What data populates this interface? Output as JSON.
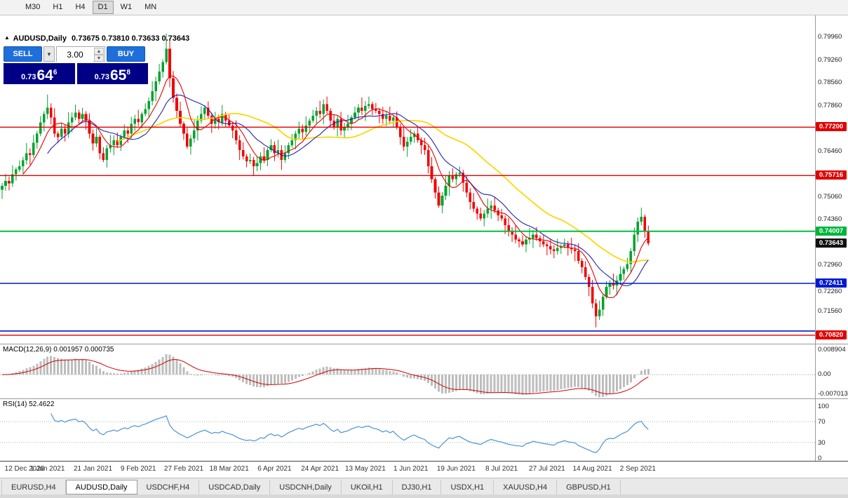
{
  "toolbar": {
    "timeframes": [
      {
        "label": "M30",
        "active": false
      },
      {
        "label": "H1",
        "active": false
      },
      {
        "label": "H4",
        "active": false
      },
      {
        "label": "D1",
        "active": true
      },
      {
        "label": "W1",
        "active": false
      },
      {
        "label": "MN",
        "active": false
      }
    ]
  },
  "chart_header": {
    "marker": "▲",
    "symbol": "AUDUSD,Daily",
    "ohlc": "0.73675 0.73810 0.73633 0.73643"
  },
  "trade_panel": {
    "sell_label": "SELL",
    "buy_label": "BUY",
    "volume": "3.00",
    "sell_price": {
      "prefix": "0.73",
      "big": "64",
      "sup": "6"
    },
    "buy_price": {
      "prefix": "0.73",
      "big": "65",
      "sup": "8"
    }
  },
  "indicators": {
    "macd": {
      "label": "MACD(12,26,9) 0.001957 0.000735",
      "params": {
        "fast": 12,
        "slow": 26,
        "signal": 9
      },
      "current_values": [
        "0.001957",
        "0.000735"
      ],
      "axis_labels": [
        {
          "text": "0.008904",
          "value": 0.008904
        },
        {
          "text": "0.00",
          "value": 0
        },
        {
          "text": "-0.007013",
          "value": -0.007013
        }
      ],
      "range": [
        -0.007013,
        0.008904
      ],
      "histogram_color": "#bdbdbd",
      "signal_color": "#d40000"
    },
    "rsi": {
      "label": "RSI(14) 52.4622",
      "period": 14,
      "current": 52.4622,
      "axis_labels": [
        {
          "text": "100",
          "value": 100
        },
        {
          "text": "70",
          "value": 70
        },
        {
          "text": "30",
          "value": 30
        },
        {
          "text": "0",
          "value": 0
        }
      ],
      "levels": [
        70,
        30
      ],
      "line_color": "#4c93d0"
    }
  },
  "price_axis": {
    "plain_labels": [
      {
        "text": "0.79960",
        "value": 0.7996
      },
      {
        "text": "0.79260",
        "value": 0.7926
      },
      {
        "text": "0.78560",
        "value": 0.7856
      },
      {
        "text": "0.77860",
        "value": 0.7786
      },
      {
        "text": "0.77160",
        "value": 0.7716
      },
      {
        "text": "0.76460",
        "value": 0.7646
      },
      {
        "text": "0.75760",
        "value": 0.7576
      },
      {
        "text": "0.75060",
        "value": 0.7506
      },
      {
        "text": "0.74360",
        "value": 0.7436
      },
      {
        "text": "0.73660",
        "value": 0.7366
      },
      {
        "text": "0.72960",
        "value": 0.7296
      },
      {
        "text": "0.72260",
        "value": 0.7226
      },
      {
        "text": "0.71560",
        "value": 0.7156
      },
      {
        "text": "0.70860",
        "value": 0.7086
      }
    ],
    "badges": [
      {
        "text": "0.77200",
        "price": 0.772,
        "color": "#e00000"
      },
      {
        "text": "0.75716",
        "price": 0.75716,
        "color": "#e00000"
      },
      {
        "text": "0.74007",
        "price": 0.74007,
        "color": "#00b43c"
      },
      {
        "text": "0.73643",
        "price": 0.73643,
        "color": "#101010"
      },
      {
        "text": "0.72411",
        "price": 0.72411,
        "color": "#0019d0"
      },
      {
        "text": "0.70820",
        "price": 0.7082,
        "color": "#e00000"
      }
    ]
  },
  "chart_data": {
    "type": "candlestick",
    "symbol": "AUDUSD",
    "timeframe": "Daily",
    "ohlc_display": {
      "open": "0.73675",
      "high": "0.73810",
      "low": "0.73633",
      "close": "0.73643"
    },
    "price_range_top": 0.80625,
    "price_range_bottom": 0.70561,
    "up_color": "#00a32e",
    "down_color": "#f20000",
    "first_open": 0.7528,
    "closes": [
      0.754,
      0.7555,
      0.7548,
      0.7575,
      0.759,
      0.76,
      0.7618,
      0.764,
      0.7635,
      0.7672,
      0.77,
      0.7735,
      0.776,
      0.778,
      0.775,
      0.77,
      0.769,
      0.7715,
      0.77,
      0.7735,
      0.775,
      0.7765,
      0.7745,
      0.776,
      0.774,
      0.77,
      0.767,
      0.769,
      0.764,
      0.762,
      0.7655,
      0.7665,
      0.768,
      0.7665,
      0.769,
      0.771,
      0.77,
      0.773,
      0.7745,
      0.7735,
      0.776,
      0.7775,
      0.78,
      0.783,
      0.786,
      0.789,
      0.792,
      0.796,
      0.787,
      0.781,
      0.777,
      0.773,
      0.77,
      0.766,
      0.7685,
      0.771,
      0.774,
      0.776,
      0.778,
      0.7755,
      0.773,
      0.7745,
      0.7735,
      0.776,
      0.774,
      0.7725,
      0.771,
      0.768,
      0.765,
      0.763,
      0.7615,
      0.762,
      0.76,
      0.761,
      0.763,
      0.762,
      0.765,
      0.7665,
      0.764,
      0.765,
      0.762,
      0.764,
      0.7665,
      0.768,
      0.77,
      0.7715,
      0.7705,
      0.7725,
      0.774,
      0.7755,
      0.777,
      0.776,
      0.779,
      0.777,
      0.774,
      0.772,
      0.7745,
      0.771,
      0.772,
      0.773,
      0.775,
      0.7765,
      0.778,
      0.777,
      0.7785,
      0.779,
      0.7775,
      0.777,
      0.776,
      0.7745,
      0.7755,
      0.774,
      0.775,
      0.772,
      0.769,
      0.766,
      0.7675,
      0.769,
      0.77,
      0.768,
      0.7665,
      0.765,
      0.76,
      0.756,
      0.752,
      0.748,
      0.751,
      0.754,
      0.757,
      0.756,
      0.7575,
      0.758,
      0.755,
      0.752,
      0.749,
      0.747,
      0.7455,
      0.744,
      0.7455,
      0.747,
      0.748,
      0.7465,
      0.745,
      0.744,
      0.742,
      0.74,
      0.739,
      0.7375,
      0.737,
      0.736,
      0.7375,
      0.738,
      0.739,
      0.738,
      0.737,
      0.736,
      0.7355,
      0.7345,
      0.734,
      0.735,
      0.7355,
      0.736,
      0.735,
      0.7345,
      0.734,
      0.731,
      0.729,
      0.726,
      0.723,
      0.718,
      0.714,
      0.716,
      0.72,
      0.723,
      0.724,
      0.7235,
      0.725,
      0.727,
      0.7285,
      0.73,
      0.734,
      0.739,
      0.743,
      0.7445,
      0.74,
      0.7364
    ],
    "wick_cycle": [
      0.0009,
      0.0022,
      0.0013,
      0.0028,
      0.0007,
      0.0018,
      0.0011,
      0.0031,
      0.0015,
      0.0024,
      0.0008,
      0.0019
    ],
    "extremes": [
      {
        "index": 13,
        "high": 0.782
      },
      {
        "index": 47,
        "high": 0.8007
      },
      {
        "index": 48,
        "high": 0.7992
      },
      {
        "index": 170,
        "low": 0.7106
      }
    ],
    "moving_averages": [
      {
        "period": 34,
        "color": "#ffd400",
        "width": 1.7
      },
      {
        "period": 14,
        "color": "#2222b0",
        "width": 1.1
      },
      {
        "period": 7,
        "color": "#e60000",
        "width": 1.1
      }
    ],
    "levels": [
      {
        "price": 0.772,
        "color": "#e00000",
        "width": 1.4
      },
      {
        "price": 0.75716,
        "color": "#e00000",
        "width": 1.4
      },
      {
        "price": 0.74007,
        "color": "#00c040",
        "width": 2
      },
      {
        "price": 0.72411,
        "color": "#0019d0",
        "width": 1.6
      },
      {
        "price": 0.7095,
        "color": "#0019d0",
        "width": 1.6
      },
      {
        "price": 0.7082,
        "color": "#e00000",
        "width": 1.4
      }
    ],
    "x_labels": [
      "12 Dec 2020",
      "1 Jan 2021",
      "21 Jan 2021",
      "9 Feb 2021",
      "27 Feb 2021",
      "18 Mar 2021",
      "6 Apr 2021",
      "24 Apr 2021",
      "13 May 2021",
      "1 Jun 2021",
      "19 Jun 2021",
      "8 Jul 2021",
      "27 Jul 2021",
      "14 Aug 2021",
      "2 Sep 2021"
    ],
    "x_label_step": 13
  },
  "tabs": {
    "items": [
      {
        "label": "EURUSD,H4",
        "active": false
      },
      {
        "label": "AUDUSD,Daily",
        "active": true
      },
      {
        "label": "USDCHF,H4",
        "active": false
      },
      {
        "label": "USDCAD,Daily",
        "active": false
      },
      {
        "label": "USDCNH,Daily",
        "active": false
      },
      {
        "label": "UKOil,H1",
        "active": false
      },
      {
        "label": "DJ30,H1",
        "active": false
      },
      {
        "label": "USDX,H1",
        "active": false
      },
      {
        "label": "XAUUSD,H4",
        "active": false
      },
      {
        "label": "GBPUSD,H1",
        "active": false
      }
    ]
  }
}
